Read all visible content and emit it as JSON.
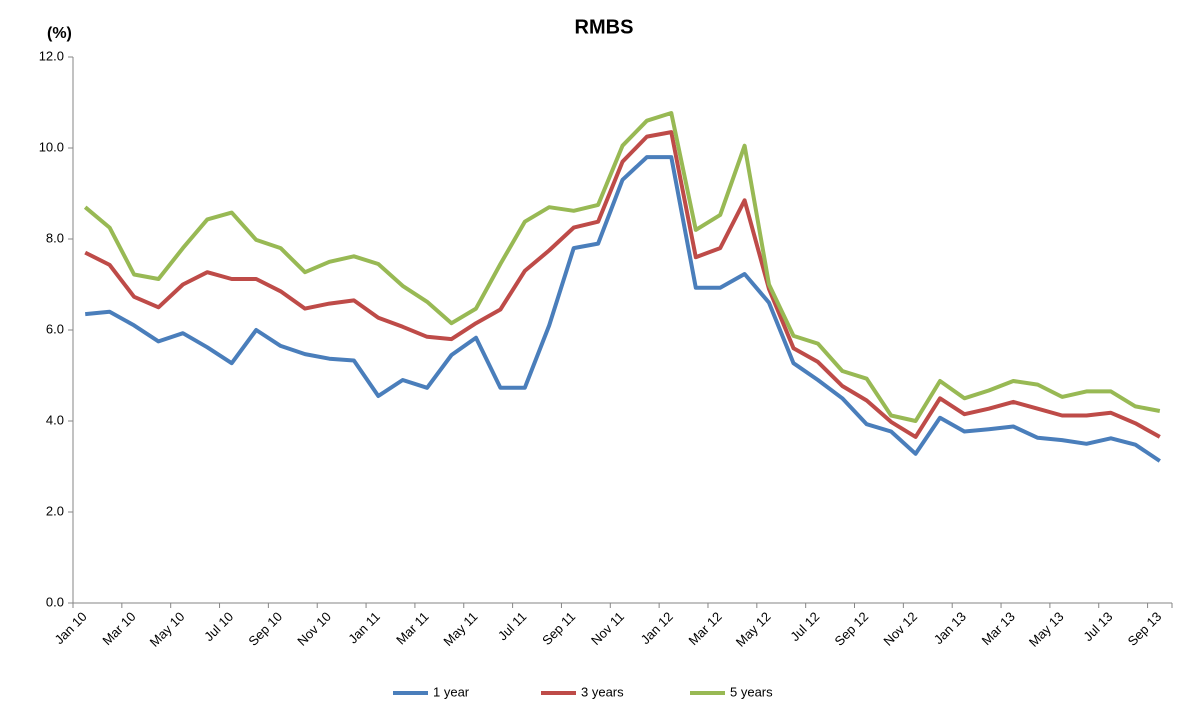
{
  "chart_data": {
    "type": "line",
    "title": "RMBS",
    "y_label": "(%)",
    "categories": [
      "Jan 10",
      null,
      "Mar 10",
      null,
      "May 10",
      null,
      "Jul 10",
      null,
      "Sep 10",
      null,
      "Nov 10",
      null,
      "Jan 11",
      null,
      "Mar 11",
      null,
      "May 11",
      null,
      "Jul 11",
      null,
      "Sep 11",
      null,
      "Nov 11",
      null,
      "Jan 12",
      null,
      "Mar 12",
      null,
      "May 12",
      null,
      "Jul 12",
      null,
      "Sep 12",
      null,
      "Nov 12",
      null,
      "Jan 13",
      null,
      "Mar 13",
      null,
      "May 13",
      null,
      "Jul 13",
      null,
      "Sep 13"
    ],
    "series": [
      {
        "name": "1 year",
        "color": "#4a7ebb",
        "values": [
          6.35,
          6.4,
          6.1,
          5.75,
          5.93,
          5.62,
          5.27,
          6.0,
          5.65,
          5.47,
          5.37,
          5.33,
          4.55,
          4.9,
          4.73,
          5.45,
          5.83,
          4.73,
          4.73,
          6.1,
          7.8,
          7.9,
          9.3,
          9.8,
          9.8,
          6.93,
          6.93,
          7.23,
          6.6,
          5.27,
          4.9,
          4.5,
          3.93,
          3.77,
          3.28,
          4.07,
          3.77,
          3.82,
          3.88,
          3.63,
          3.58,
          3.5,
          3.62,
          3.48,
          3.12
        ]
      },
      {
        "name": "3 years",
        "color": "#be4b48",
        "values": [
          7.7,
          7.43,
          6.73,
          6.5,
          7.0,
          7.27,
          7.12,
          7.12,
          6.85,
          6.47,
          6.58,
          6.65,
          6.27,
          6.07,
          5.85,
          5.8,
          6.15,
          6.45,
          7.3,
          7.75,
          8.25,
          8.38,
          9.7,
          10.25,
          10.35,
          7.6,
          7.8,
          8.85,
          6.9,
          5.6,
          5.3,
          4.77,
          4.45,
          3.98,
          3.65,
          4.5,
          4.15,
          4.27,
          4.42,
          4.27,
          4.12,
          4.12,
          4.18,
          3.95,
          3.65
        ]
      },
      {
        "name": "5 years",
        "color": "#98b954",
        "values": [
          8.7,
          8.25,
          7.22,
          7.12,
          7.8,
          8.43,
          8.58,
          7.98,
          7.8,
          7.27,
          7.5,
          7.62,
          7.45,
          6.97,
          6.62,
          6.15,
          6.47,
          7.45,
          8.38,
          8.7,
          8.62,
          8.75,
          10.05,
          10.6,
          10.77,
          8.2,
          8.53,
          10.05,
          7.0,
          5.87,
          5.7,
          5.1,
          4.93,
          4.12,
          4.0,
          4.88,
          4.5,
          4.67,
          4.88,
          4.8,
          4.53,
          4.65,
          4.65,
          4.32,
          4.22
        ]
      }
    ],
    "ylim": [
      0,
      12
    ],
    "yticks": [
      {
        "value": 0,
        "label": "0.0"
      },
      {
        "value": 2,
        "label": "2.0"
      },
      {
        "value": 4,
        "label": "4.0"
      },
      {
        "value": 6,
        "label": "6.0"
      },
      {
        "value": 8,
        "label": "8.0"
      },
      {
        "value": 10,
        "label": "10.0"
      },
      {
        "value": 12,
        "label": "12.0"
      }
    ],
    "grid": false,
    "legend": "bottom"
  }
}
